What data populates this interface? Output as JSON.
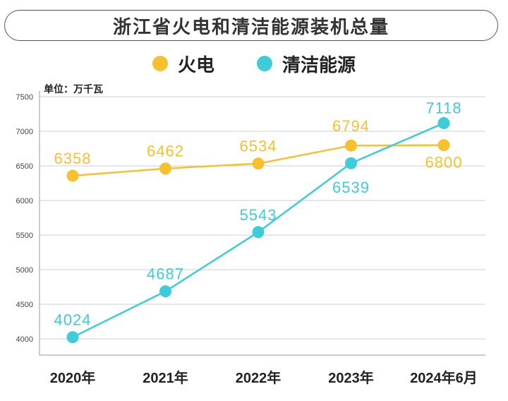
{
  "chart_data": {
    "type": "line",
    "title": "浙江省火电和清洁能源装机总量",
    "unit_label": "单位：万千瓦",
    "categories": [
      "2020年",
      "2021年",
      "2022年",
      "2023年",
      "2024年6月"
    ],
    "series": [
      {
        "name": "火电",
        "color": "#F7C02E",
        "values": [
          6358,
          6462,
          6534,
          6794,
          6800
        ],
        "labels": [
          "6358",
          "6462",
          "6534",
          "6794",
          "6800"
        ]
      },
      {
        "name": "清洁能源",
        "color": "#3ECCD8",
        "values": [
          4024,
          4687,
          5543,
          6539,
          7118
        ],
        "labels": [
          "4024",
          "4687",
          "5543",
          "6539",
          "7118"
        ]
      }
    ],
    "yticks": [
      "4000",
      "4500",
      "5000",
      "5500",
      "6000",
      "6500",
      "7000",
      "7500"
    ],
    "ylim": [
      4000,
      7500
    ],
    "grid": true,
    "legend_position": "top"
  }
}
